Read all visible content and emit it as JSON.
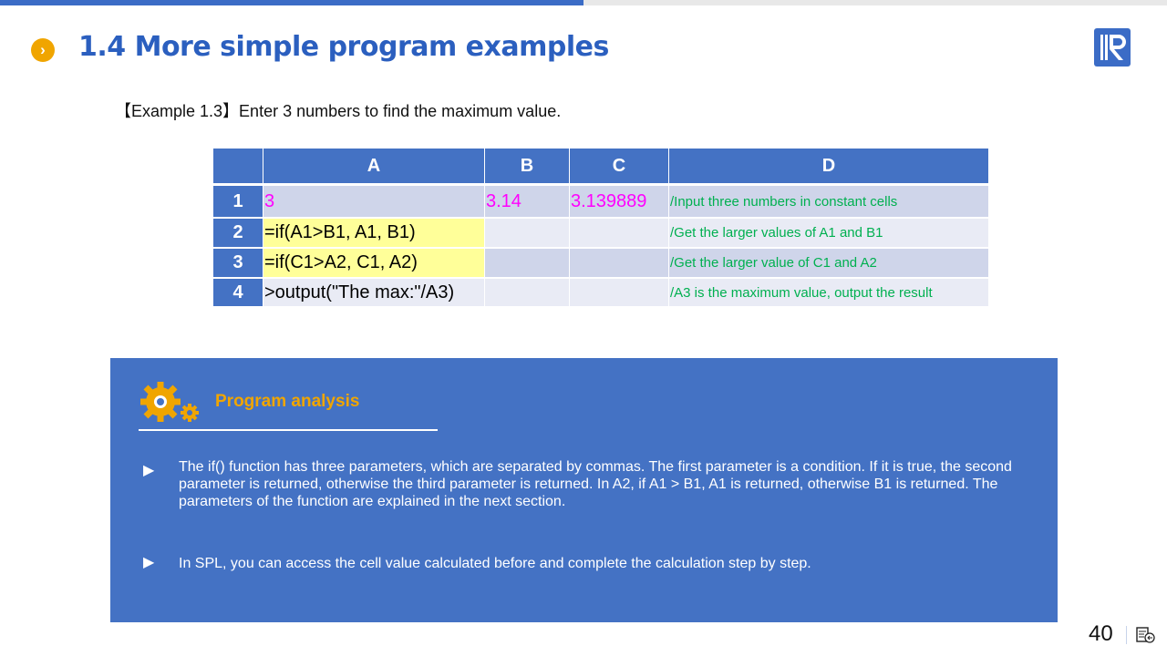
{
  "header": {
    "title": "1.4 More simple program examples",
    "bullet_icon": "chevron-right-circle-icon",
    "accent": "#f0a500",
    "title_color": "#2b5fbf",
    "logo_icon": "R-logo"
  },
  "subtitle": "【Example 1.3】Enter 3 numbers to find the maximum value.",
  "grid": {
    "columns": [
      "A",
      "B",
      "C",
      "D"
    ],
    "rows": [
      {
        "num": "1",
        "A": "3",
        "B": "3.14",
        "C": "3.139889",
        "D": "/Input three numbers in constant cells"
      },
      {
        "num": "2",
        "A": "=if(A1>B1, A1, B1)",
        "B": "",
        "C": "",
        "D": "/Get the larger values of A1 and B1"
      },
      {
        "num": "3",
        "A": "=if(C1>A2, C1, A2)",
        "B": "",
        "C": "",
        "D": "/Get the larger value of C1 and A2"
      },
      {
        "num": "4",
        "A": ">output(\"The  max:\"/A3)",
        "B": "",
        "C": "",
        "D": "/A3 is the maximum value, output the result"
      }
    ]
  },
  "panel": {
    "icon": "gears-icon",
    "title": "Program analysis",
    "bullets": [
      "The if() function has three parameters, which are separated by commas. The first parameter is a condition. If it is true, the second parameter is returned, otherwise the third parameter is returned. In A2, if A1 > B1, A1 is returned, otherwise B1 is returned. The parameters of the function are explained in the next section.",
      "In SPL, you can access the cell value calculated before and complete the calculation step by step."
    ],
    "bullet_glyph": "▶"
  },
  "footer": {
    "page": "40",
    "notes_icon": "notes-icon"
  }
}
